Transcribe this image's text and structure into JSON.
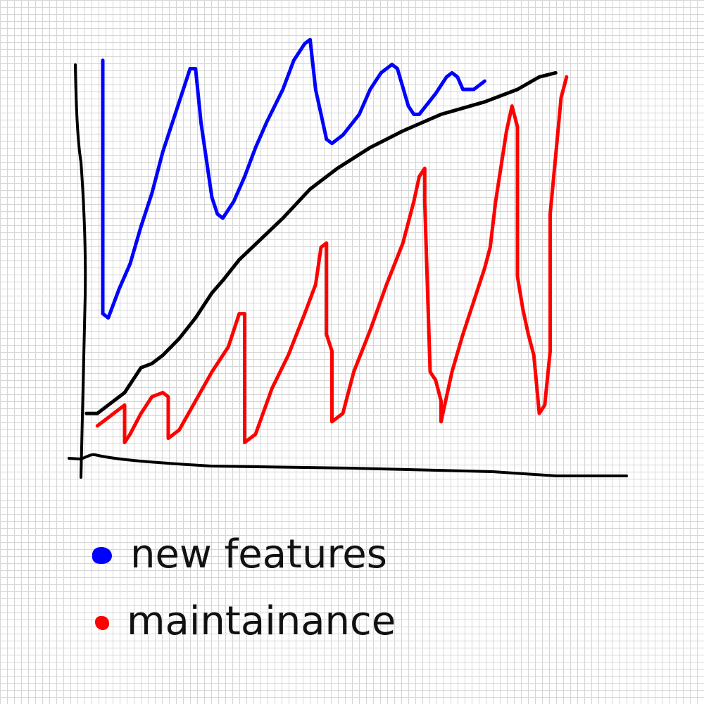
{
  "chart_data": {
    "type": "line",
    "title": "",
    "xlabel": "",
    "ylabel": "",
    "xlim": [
      0,
      100
    ],
    "ylim": [
      0,
      100
    ],
    "grid": true,
    "legend_placement": "bottom-left",
    "series": [
      {
        "name": "new features",
        "color": "#0000ff",
        "points": [
          [
            4,
            97
          ],
          [
            4,
            71
          ],
          [
            4,
            36
          ],
          [
            5,
            35
          ],
          [
            7,
            42
          ],
          [
            9,
            48
          ],
          [
            11,
            57
          ],
          [
            13,
            65
          ],
          [
            15,
            75
          ],
          [
            17,
            83
          ],
          [
            19,
            91
          ],
          [
            20,
            95
          ],
          [
            21,
            95
          ],
          [
            22,
            82
          ],
          [
            24,
            64
          ],
          [
            25,
            60
          ],
          [
            26,
            59
          ],
          [
            28,
            63
          ],
          [
            30,
            69
          ],
          [
            32,
            76
          ],
          [
            34,
            82
          ],
          [
            37,
            90
          ],
          [
            39,
            97
          ],
          [
            41,
            101
          ],
          [
            42,
            102
          ],
          [
            43,
            90
          ],
          [
            45,
            78
          ],
          [
            46,
            77
          ],
          [
            48,
            79
          ],
          [
            51,
            84
          ],
          [
            53,
            90
          ],
          [
            55,
            94
          ],
          [
            57,
            96
          ],
          [
            58,
            95
          ],
          [
            60,
            86
          ],
          [
            61,
            84
          ],
          [
            62,
            84
          ],
          [
            65,
            89
          ],
          [
            67,
            93
          ],
          [
            68,
            94
          ],
          [
            69,
            93
          ],
          [
            70,
            90
          ],
          [
            72,
            90
          ],
          [
            73,
            91
          ],
          [
            74,
            92
          ]
        ]
      },
      {
        "name": "maintainance",
        "color": "#ff0000",
        "points": [
          [
            3,
            9
          ],
          [
            5,
            11
          ],
          [
            7,
            13
          ],
          [
            8,
            14
          ],
          [
            8,
            5
          ],
          [
            9,
            7
          ],
          [
            11,
            12
          ],
          [
            13,
            16
          ],
          [
            15,
            17
          ],
          [
            16,
            16
          ],
          [
            16,
            6
          ],
          [
            18,
            8
          ],
          [
            21,
            15
          ],
          [
            24,
            22
          ],
          [
            27,
            28
          ],
          [
            29,
            36
          ],
          [
            30,
            36
          ],
          [
            30,
            5
          ],
          [
            32,
            7
          ],
          [
            35,
            18
          ],
          [
            38,
            26
          ],
          [
            41,
            36
          ],
          [
            43,
            43
          ],
          [
            44,
            52
          ],
          [
            45,
            53
          ],
          [
            45,
            31
          ],
          [
            46,
            27
          ],
          [
            46,
            10
          ],
          [
            48,
            12
          ],
          [
            50,
            22
          ],
          [
            53,
            32
          ],
          [
            56,
            43
          ],
          [
            59,
            53
          ],
          [
            61,
            63
          ],
          [
            62,
            69
          ],
          [
            63,
            71
          ],
          [
            63,
            63
          ],
          [
            64,
            22
          ],
          [
            65,
            20
          ],
          [
            66,
            15
          ],
          [
            66,
            10
          ],
          [
            68,
            22
          ],
          [
            70,
            31
          ],
          [
            72,
            39
          ],
          [
            74,
            47
          ],
          [
            75,
            52
          ],
          [
            76,
            63
          ],
          [
            78,
            80
          ],
          [
            79,
            86
          ],
          [
            80,
            81
          ],
          [
            80,
            45
          ],
          [
            81,
            37
          ],
          [
            82,
            31
          ],
          [
            83,
            26
          ],
          [
            84,
            12
          ],
          [
            85,
            14
          ],
          [
            86,
            27
          ],
          [
            86,
            60
          ],
          [
            87,
            74
          ],
          [
            88,
            88
          ],
          [
            89,
            93
          ],
          [
            89,
            93
          ]
        ]
      },
      {
        "name": "",
        "color": "#000000",
        "points": [
          [
            1,
            12
          ],
          [
            3,
            12
          ],
          [
            5,
            14
          ],
          [
            8,
            17
          ],
          [
            11,
            23
          ],
          [
            13,
            24
          ],
          [
            15,
            26
          ],
          [
            18,
            30
          ],
          [
            21,
            35
          ],
          [
            24,
            41
          ],
          [
            26,
            44
          ],
          [
            29,
            49
          ],
          [
            33,
            54
          ],
          [
            37,
            59
          ],
          [
            42,
            66
          ],
          [
            47,
            71
          ],
          [
            53,
            76
          ],
          [
            59,
            80
          ],
          [
            66,
            84
          ],
          [
            74,
            87
          ],
          [
            80,
            90
          ],
          [
            84,
            93
          ],
          [
            87,
            94
          ]
        ]
      }
    ]
  },
  "legend": [
    {
      "label": "new features",
      "color": "#0000ff"
    },
    {
      "label": "maintainance",
      "color": "#ff0000"
    }
  ]
}
